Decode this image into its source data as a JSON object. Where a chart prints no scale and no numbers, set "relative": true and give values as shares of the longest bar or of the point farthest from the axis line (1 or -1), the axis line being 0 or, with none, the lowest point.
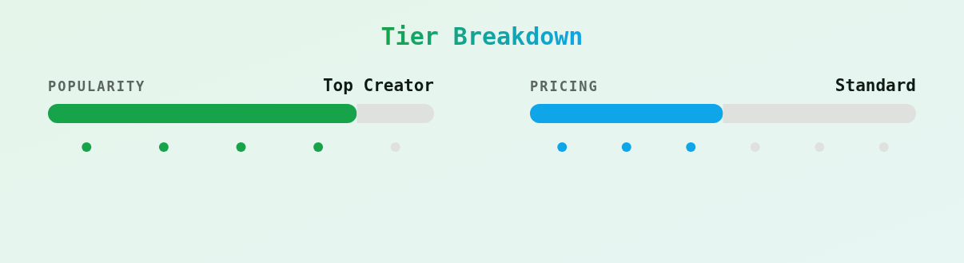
{
  "chart_data": [
    {
      "type": "other",
      "title": "Tier Breakdown"
    },
    {
      "type": "bar",
      "orientation": "horizontal",
      "stacked": true,
      "relative": true,
      "title": "POPULARITY",
      "subtitle": "Top Creator",
      "categories": [
        null
      ],
      "series": [
        {
          "color": "#16a34a",
          "values": [
            0.8
          ]
        },
        {
          "color": "#dfe1de",
          "values": [
            0.2
          ]
        }
      ]
    },
    {
      "type": "bar",
      "orientation": "horizontal",
      "stacked": true,
      "relative": true,
      "title": "PRICING",
      "subtitle": "Standard",
      "categories": [
        null
      ],
      "series": [
        {
          "color": "#0ea5e9",
          "values": [
            0.5
          ]
        },
        {
          "color": "#dfe1de",
          "values": [
            0.5
          ]
        }
      ]
    }
  ]
}
